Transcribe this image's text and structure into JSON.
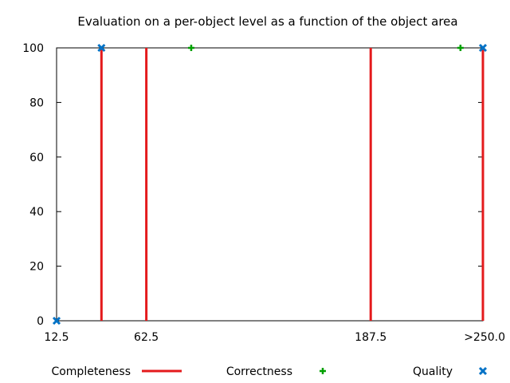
{
  "chart_data": {
    "type": "scatter",
    "title": "Evaluation on a per-object level as a function of the object area",
    "xlabel": "",
    "ylabel": "",
    "x_ticks": [
      "12.5",
      "62.5",
      "187.5",
      ">250.0"
    ],
    "x_tick_values": [
      12.5,
      62.5,
      187.5,
      250.0
    ],
    "xlim": [
      12.5,
      250.0
    ],
    "y_ticks": [
      "0",
      "20",
      "40",
      "60",
      "80",
      "100"
    ],
    "y_tick_values": [
      0,
      20,
      40,
      60,
      80,
      100
    ],
    "ylim": [
      0,
      100
    ],
    "grid": false,
    "legend_position": "bottom",
    "series": [
      {
        "name": "Completeness",
        "style": "impulses",
        "color": "#e41a1c",
        "x": [
          37.5,
          62.5,
          187.5,
          250.0
        ],
        "values": [
          100,
          100,
          100,
          100
        ]
      },
      {
        "name": "Correctness",
        "style": "plus",
        "color": "#00a000",
        "x": [
          87.5,
          237.5
        ],
        "values": [
          100,
          100
        ]
      },
      {
        "name": "Quality",
        "style": "cross",
        "color": "#0072c6",
        "x": [
          12.5,
          37.5,
          250.0
        ],
        "values": [
          0,
          100,
          100
        ]
      }
    ]
  }
}
